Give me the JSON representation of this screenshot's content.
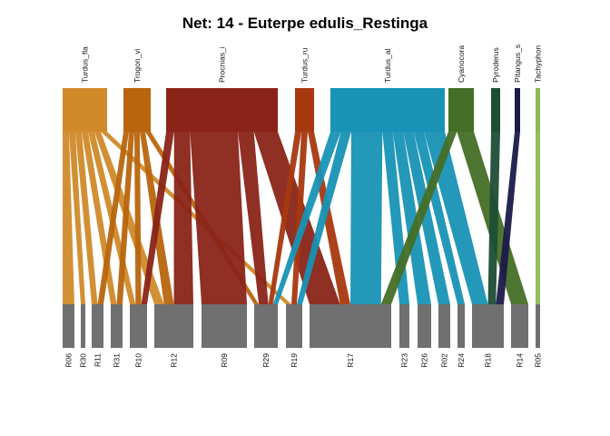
{
  "title": "Net: 14 - Euterpe edulis_Restinga",
  "chart_data": {
    "type": "bipartite",
    "upper_level": [
      {
        "name": "Turdus_fla",
        "color": "#D08A2A"
      },
      {
        "name": "Trogon_vi",
        "color": "#B8650E"
      },
      {
        "name": "Procnias_i",
        "color": "#8A2418"
      },
      {
        "name": "Turdus_ru",
        "color": "#A8380F"
      },
      {
        "name": "Turdus_al",
        "color": "#1892B5"
      },
      {
        "name": "Cyanocora",
        "color": "#456E26"
      },
      {
        "name": "Pyroderus",
        "color": "#1E4D36"
      },
      {
        "name": "Pitangus_s",
        "color": "#1A1A4A"
      },
      {
        "name": "Tachyphon",
        "color": "#8DB85C"
      }
    ],
    "lower_level": [
      "R06",
      "R30",
      "R11",
      "R31",
      "R10",
      "R12",
      "R09",
      "R29",
      "R19",
      "R17",
      "R23",
      "R26",
      "R02",
      "R24",
      "R18",
      "R14",
      "R05"
    ],
    "lower_color": "#707070",
    "interactions": [
      {
        "from": "Turdus_fla",
        "to": "R06",
        "weight": 1
      },
      {
        "from": "Turdus_fla",
        "to": "R30",
        "weight": 1
      },
      {
        "from": "Turdus_fla",
        "to": "R11",
        "weight": 1
      },
      {
        "from": "Turdus_fla",
        "to": "R31",
        "weight": 1
      },
      {
        "from": "Turdus_fla",
        "to": "R10",
        "weight": 1
      },
      {
        "from": "Turdus_fla",
        "to": "R12",
        "weight": 1
      },
      {
        "from": "Turdus_fla",
        "to": "R19",
        "weight": 1
      },
      {
        "from": "Trogon_vi",
        "to": "R11",
        "weight": 1
      },
      {
        "from": "Trogon_vi",
        "to": "R31",
        "weight": 1
      },
      {
        "from": "Trogon_vi",
        "to": "R10",
        "weight": 1
      },
      {
        "from": "Trogon_vi",
        "to": "R12",
        "weight": 1
      },
      {
        "from": "Trogon_vi",
        "to": "R29",
        "weight": 1
      },
      {
        "from": "Procnias_i",
        "to": "R10",
        "weight": 1
      },
      {
        "from": "Procnias_i",
        "to": "R12",
        "weight": 2
      },
      {
        "from": "Procnias_i",
        "to": "R09",
        "weight": 6
      },
      {
        "from": "Procnias_i",
        "to": "R29",
        "weight": 2
      },
      {
        "from": "Procnias_i",
        "to": "R17",
        "weight": 3
      },
      {
        "from": "Turdus_ru",
        "to": "R29",
        "weight": 1
      },
      {
        "from": "Turdus_ru",
        "to": "R19",
        "weight": 1
      },
      {
        "from": "Turdus_ru",
        "to": "R17",
        "weight": 1
      },
      {
        "from": "Turdus_al",
        "to": "R29",
        "weight": 1
      },
      {
        "from": "Turdus_al",
        "to": "R19",
        "weight": 1
      },
      {
        "from": "Turdus_al",
        "to": "R17",
        "weight": 3
      },
      {
        "from": "Turdus_al",
        "to": "R23",
        "weight": 1
      },
      {
        "from": "Turdus_al",
        "to": "R26",
        "weight": 1
      },
      {
        "from": "Turdus_al",
        "to": "R02",
        "weight": 1
      },
      {
        "from": "Turdus_al",
        "to": "R24",
        "weight": 1
      },
      {
        "from": "Turdus_al",
        "to": "R18",
        "weight": 2
      },
      {
        "from": "Cyanocora",
        "to": "R17",
        "weight": 1
      },
      {
        "from": "Cyanocora",
        "to": "R14",
        "weight": 2
      },
      {
        "from": "Pyroderus",
        "to": "R18",
        "weight": 1
      },
      {
        "from": "Pitangus_s",
        "to": "R18",
        "weight": 1
      },
      {
        "from": "Tachyphon",
        "to": "R05",
        "weight": 1
      }
    ]
  }
}
